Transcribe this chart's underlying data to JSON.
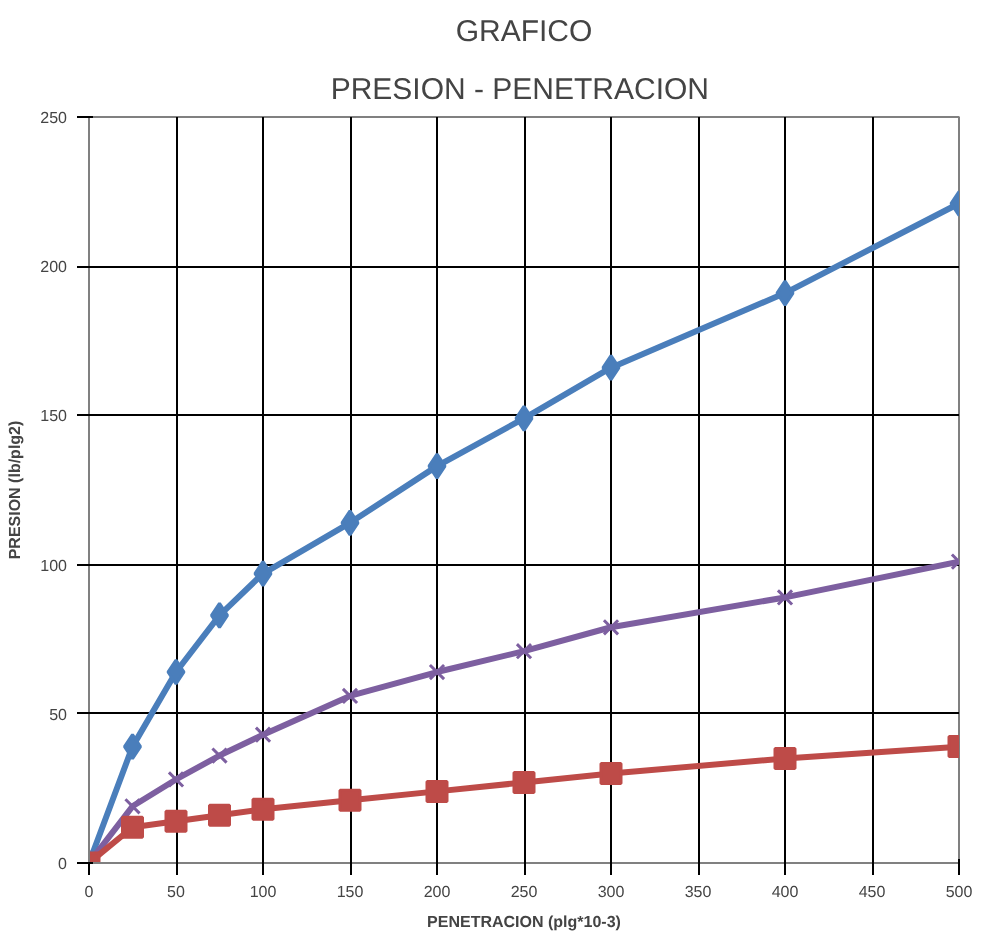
{
  "chart_data": {
    "type": "line",
    "title": "GRAFICO",
    "subtitle": "PRESION  - PENETRACION",
    "xlabel": "PENETRACION (plg*10-3)",
    "ylabel": "PRESION (lb/plg2)",
    "x": [
      0,
      25,
      50,
      75,
      100,
      150,
      200,
      250,
      300,
      400,
      500
    ],
    "series": [
      {
        "color": "#4a7ebb",
        "marker": "diamond",
        "values": [
          0,
          39,
          64,
          83,
          97,
          114,
          133,
          149,
          166,
          191,
          221
        ]
      },
      {
        "color": "#7d5fa0",
        "marker": "cross",
        "values": [
          0,
          19,
          28,
          36,
          43,
          56,
          64,
          71,
          79,
          89,
          101
        ]
      },
      {
        "color": "#be4b48",
        "marker": "square",
        "values": [
          0,
          12,
          14,
          16,
          18,
          21,
          24,
          27,
          30,
          35,
          39
        ]
      }
    ],
    "xlim": [
      0,
      500
    ],
    "xticks": [
      0,
      50,
      100,
      150,
      200,
      250,
      300,
      350,
      400,
      450,
      500
    ],
    "ylim": [
      0,
      250
    ],
    "yticks": [
      0,
      50,
      100,
      150,
      200,
      250
    ],
    "grid": true
  }
}
